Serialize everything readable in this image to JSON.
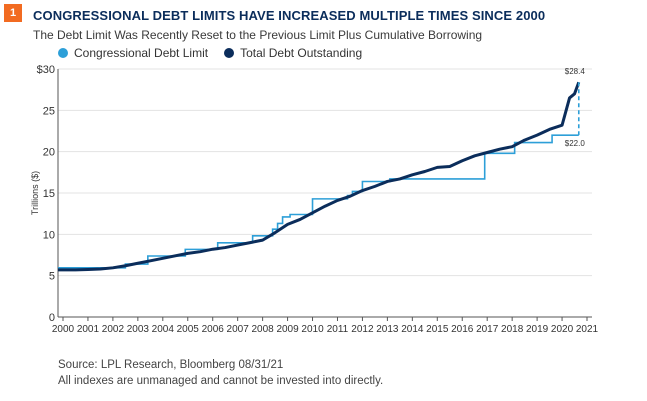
{
  "badge": "1",
  "title": "CONGRESSIONAL DEBT LIMITS HAVE INCREASED MULTIPLE TIMES SINCE 2000",
  "subtitle": "The Debt Limit Was Recently Reset to the Previous Limit Plus Cumulative Borrowing",
  "footer": {
    "source": "Source: LPL Research, Bloomberg   08/31/21",
    "note": "All indexes are unmanaged and cannot be invested into directly."
  },
  "colors": {
    "limit": "#2d9fd8",
    "debt": "#0b2d5b",
    "badge": "#f26b21",
    "grid": "#e3e3e3",
    "axis": "#555555"
  },
  "chart_data": {
    "type": "line",
    "ylabel": "Trillions ($)",
    "xlabel": "",
    "ylim": [
      0,
      30
    ],
    "xlim": [
      1999.8,
      2021.2
    ],
    "yticks": [
      0,
      5,
      10,
      15,
      20,
      25,
      30
    ],
    "ytick_labels": [
      "0",
      "5",
      "10",
      "15",
      "20",
      "25",
      "$30"
    ],
    "xticks": [
      2000,
      2001,
      2002,
      2003,
      2004,
      2005,
      2006,
      2007,
      2008,
      2009,
      2010,
      2011,
      2012,
      2013,
      2014,
      2015,
      2016,
      2017,
      2018,
      2019,
      2020,
      2021
    ],
    "xtick_labels": [
      "2000",
      "2001",
      "2002",
      "2003",
      "2004",
      "2005",
      "2006",
      "2007",
      "2008",
      "2009",
      "2010",
      "2011",
      "2012",
      "2013",
      "2014",
      "2015",
      "2016",
      "2017",
      "2018",
      "2019",
      "2020",
      "2021"
    ],
    "grid": "horizontal",
    "legend_position": "top-left",
    "annotations": [
      {
        "text": "$28.4",
        "x": 2020.67,
        "y": 28.4
      },
      {
        "text": "$22.0",
        "x": 2020.67,
        "y": 22.0
      }
    ],
    "series": [
      {
        "name": "Congressional Debt Limit",
        "style": "step",
        "x": [
          1999.8,
          2002.5,
          2003.4,
          2004.9,
          2006.2,
          2007.6,
          2008.4,
          2008.6,
          2008.8,
          2009.1,
          2010.0,
          2011.4,
          2011.6,
          2012.0,
          2013.1,
          2016.9,
          2018.1,
          2019.6,
          2020.5,
          2020.67
        ],
        "y": [
          5.95,
          6.4,
          7.38,
          8.18,
          8.97,
          9.82,
          10.62,
          11.32,
          12.1,
          12.4,
          14.29,
          14.69,
          15.19,
          16.39,
          16.7,
          19.8,
          21.1,
          21.99,
          21.99,
          21.99
        ]
      },
      {
        "name": "Total Debt Outstanding",
        "style": "line",
        "x": [
          1999.8,
          2000.5,
          2001.0,
          2001.5,
          2002.0,
          2002.5,
          2003.0,
          2003.5,
          2004.0,
          2004.5,
          2005.0,
          2005.5,
          2006.0,
          2006.5,
          2007.0,
          2007.5,
          2008.0,
          2008.5,
          2009.0,
          2009.5,
          2010.0,
          2010.5,
          2011.0,
          2011.5,
          2012.0,
          2012.5,
          2013.0,
          2013.5,
          2014.0,
          2014.5,
          2015.0,
          2015.5,
          2016.0,
          2016.5,
          2017.0,
          2017.5,
          2018.0,
          2018.5,
          2019.0,
          2019.5,
          2020.0,
          2020.3,
          2020.5,
          2020.67
        ],
        "y": [
          5.7,
          5.7,
          5.75,
          5.8,
          5.95,
          6.2,
          6.5,
          6.8,
          7.1,
          7.4,
          7.7,
          7.9,
          8.2,
          8.4,
          8.7,
          9.0,
          9.3,
          10.2,
          11.2,
          11.8,
          12.6,
          13.4,
          14.1,
          14.6,
          15.3,
          15.8,
          16.4,
          16.7,
          17.2,
          17.6,
          18.1,
          18.2,
          18.9,
          19.5,
          19.9,
          20.3,
          20.6,
          21.4,
          22.0,
          22.7,
          23.2,
          26.5,
          27.0,
          28.4
        ]
      }
    ]
  }
}
